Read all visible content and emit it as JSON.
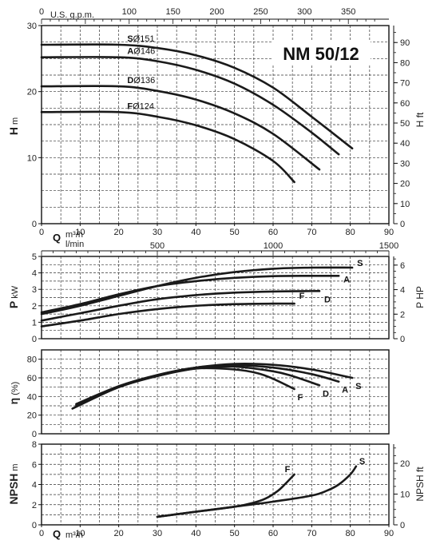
{
  "model_title": "NM 50/12",
  "top_axis": {
    "unit_label": "U.S. g.p.m.",
    "ticks": [
      0,
      100,
      150,
      200,
      250,
      300,
      350
    ]
  },
  "mid_axis": {
    "unit_label": "l/min",
    "ticks": [
      500,
      1000,
      1500
    ]
  },
  "bottom_axis": {
    "label_q": "Q",
    "unit_top": "m³/h",
    "unit_bottom": "m³/h",
    "ticks": [
      0,
      10,
      20,
      30,
      40,
      50,
      60,
      70,
      80,
      90
    ]
  },
  "chart_data": [
    {
      "type": "line",
      "panel": "head",
      "title": "NM 50/12",
      "xlabel": "Q m³/h",
      "ylabel": "H m",
      "ylabel_right": "H ft",
      "xlim": [
        0,
        90
      ],
      "ylim": [
        0,
        30
      ],
      "yticks": [
        0,
        10,
        20,
        30
      ],
      "yticks_right": [
        0,
        10,
        20,
        30,
        40,
        50,
        60,
        70,
        80,
        90
      ],
      "grid": true,
      "series": [
        {
          "name": "S",
          "label": "Ø151",
          "x": [
            0,
            20,
            30,
            40,
            50,
            60,
            70,
            80.5
          ],
          "y": [
            27.1,
            27.1,
            26.6,
            25.5,
            23.6,
            20.6,
            16.2,
            11.4
          ]
        },
        {
          "name": "A",
          "label": "Ø146",
          "x": [
            0,
            20,
            30,
            40,
            50,
            60,
            70,
            77
          ],
          "y": [
            25.2,
            25.2,
            24.6,
            23.3,
            21.2,
            18.0,
            13.8,
            10.5
          ]
        },
        {
          "name": "D",
          "label": "Ø136",
          "x": [
            0,
            20,
            30,
            40,
            50,
            60,
            72
          ],
          "y": [
            20.8,
            20.8,
            20.1,
            18.8,
            16.7,
            13.6,
            8.2
          ]
        },
        {
          "name": "F",
          "label": "Ø124",
          "x": [
            0,
            20,
            30,
            40,
            50,
            60,
            65.5
          ],
          "y": [
            16.9,
            16.9,
            16.2,
            14.9,
            12.8,
            9.5,
            6.3
          ]
        }
      ]
    },
    {
      "type": "line",
      "panel": "power",
      "xlabel": "Q m³/h",
      "ylabel": "P kW",
      "ylabel_right": "P HP",
      "xlim": [
        0,
        90
      ],
      "ylim": [
        0,
        5
      ],
      "yticks": [
        0,
        1,
        2,
        3,
        4,
        5
      ],
      "yticks_right": [
        0,
        2,
        4,
        6
      ],
      "grid": true,
      "series": [
        {
          "name": "S",
          "x": [
            0,
            10,
            20,
            30,
            40,
            50,
            60,
            70,
            80.5
          ],
          "y": [
            1.5,
            2.0,
            2.6,
            3.2,
            3.7,
            4.05,
            4.25,
            4.32,
            4.32
          ]
        },
        {
          "name": "A",
          "x": [
            0,
            10,
            20,
            30,
            40,
            50,
            60,
            70,
            77
          ],
          "y": [
            1.6,
            2.1,
            2.7,
            3.2,
            3.5,
            3.7,
            3.8,
            3.82,
            3.82
          ]
        },
        {
          "name": "D",
          "x": [
            0,
            10,
            20,
            30,
            40,
            50,
            60,
            72
          ],
          "y": [
            1.1,
            1.55,
            2.0,
            2.4,
            2.65,
            2.8,
            2.87,
            2.9
          ]
        },
        {
          "name": "F",
          "x": [
            0,
            10,
            20,
            30,
            40,
            50,
            60,
            65.5
          ],
          "y": [
            0.75,
            1.1,
            1.5,
            1.8,
            2.0,
            2.1,
            2.13,
            2.13
          ]
        }
      ]
    },
    {
      "type": "line",
      "panel": "efficiency",
      "xlabel": "Q m³/h",
      "ylabel": "η (%)",
      "xlim": [
        0,
        90
      ],
      "ylim": [
        0,
        90
      ],
      "yticks": [
        0,
        20,
        40,
        60,
        80
      ],
      "grid": true,
      "series": [
        {
          "name": "S",
          "x": [
            9,
            20,
            30,
            40,
            50,
            60,
            70,
            80.5
          ],
          "y": [
            32,
            51,
            63,
            71,
            75,
            74,
            69,
            60
          ]
        },
        {
          "name": "A",
          "x": [
            9,
            20,
            30,
            40,
            50,
            60,
            70,
            77
          ],
          "y": [
            31,
            51,
            63,
            71,
            73.5,
            71,
            64,
            56
          ]
        },
        {
          "name": "D",
          "x": [
            9,
            20,
            30,
            40,
            50,
            60,
            65,
            72
          ],
          "y": [
            30,
            50,
            62,
            70,
            72,
            67,
            62,
            52
          ]
        },
        {
          "name": "F",
          "x": [
            8,
            20,
            30,
            40,
            50,
            56,
            60,
            65.5
          ],
          "y": [
            27,
            50,
            62,
            70,
            69,
            65,
            59,
            48
          ]
        }
      ]
    },
    {
      "type": "line",
      "panel": "npsh",
      "xlabel": "Q m³/h",
      "ylabel": "NPSH m",
      "ylabel_right": "NPSH ft",
      "xlim": [
        0,
        90
      ],
      "ylim": [
        0,
        8
      ],
      "yticks": [
        0,
        2,
        4,
        6,
        8
      ],
      "yticks_right": [
        0,
        10,
        20
      ],
      "grid": true,
      "series": [
        {
          "name": "F",
          "x": [
            30,
            40,
            50,
            55,
            58,
            61,
            63,
            65.5
          ],
          "y": [
            0.8,
            1.3,
            1.8,
            2.2,
            2.6,
            3.3,
            4.0,
            5.0
          ]
        },
        {
          "name": "S",
          "x": [
            30,
            40,
            50,
            60,
            70,
            74,
            77,
            80,
            81.5
          ],
          "y": [
            0.8,
            1.3,
            1.8,
            2.3,
            2.9,
            3.4,
            4.0,
            5.0,
            5.8
          ]
        }
      ]
    }
  ]
}
